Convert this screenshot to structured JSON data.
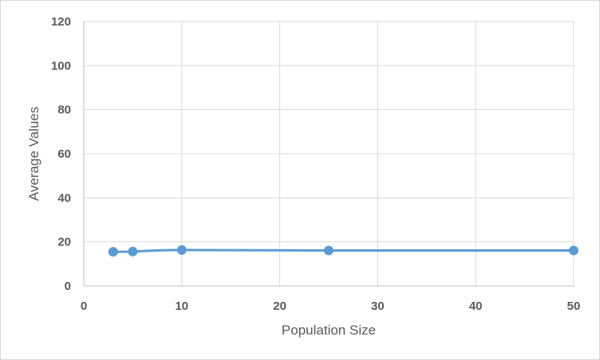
{
  "chart_data": {
    "type": "scatter",
    "title": "",
    "xlabel": "Population Size",
    "ylabel": "Average Values",
    "xlim": [
      0,
      50
    ],
    "ylim": [
      0,
      120
    ],
    "x_ticks": [
      "0",
      "10",
      "20",
      "30",
      "40",
      "50"
    ],
    "y_ticks": [
      "0",
      "20",
      "40",
      "60",
      "80",
      "100",
      "120"
    ],
    "grid": true,
    "legend": "none",
    "series": [
      {
        "x": [
          3,
          5,
          10,
          25,
          50
        ],
        "y": [
          15.5,
          15.6,
          16.3,
          16.1,
          16.1
        ],
        "color": "#5b9bd5",
        "line": "smooth",
        "marker": "circle"
      }
    ]
  }
}
